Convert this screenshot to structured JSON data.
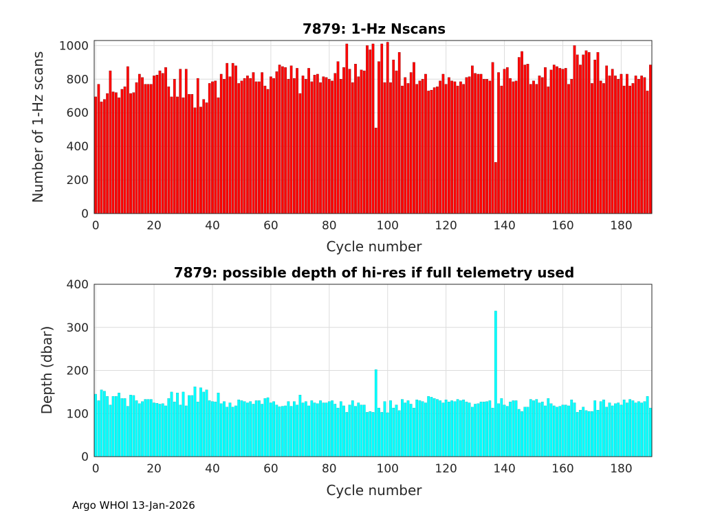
{
  "footer": "Argo WHOI 13-Jan-2026",
  "colors": {
    "top_bars": "#ff0000",
    "bottom_bars": "#00ffff",
    "bar_edge_top": "#660000",
    "bar_edge_bottom": "#00aaaa"
  },
  "chart_data": [
    {
      "type": "bar",
      "title": "7879: 1-Hz Nscans",
      "xlabel": "Cycle number",
      "ylabel": "Number of 1-Hz scans",
      "xlim": [
        -0.5,
        190.5
      ],
      "ylim": [
        0,
        1030
      ],
      "xticks": [
        0,
        20,
        40,
        60,
        80,
        100,
        120,
        140,
        160,
        180
      ],
      "yticks": [
        0,
        200,
        400,
        600,
        800,
        1000
      ],
      "grid": true,
      "x_start": 0,
      "values": [
        695,
        770,
        665,
        680,
        715,
        850,
        725,
        720,
        690,
        740,
        755,
        875,
        715,
        720,
        780,
        830,
        810,
        770,
        770,
        770,
        820,
        825,
        850,
        835,
        870,
        755,
        695,
        800,
        695,
        860,
        690,
        860,
        710,
        710,
        630,
        805,
        635,
        680,
        660,
        775,
        785,
        790,
        690,
        830,
        800,
        895,
        815,
        895,
        880,
        775,
        790,
        805,
        820,
        805,
        840,
        785,
        785,
        840,
        760,
        740,
        815,
        805,
        845,
        885,
        875,
        870,
        800,
        880,
        805,
        865,
        715,
        820,
        800,
        865,
        785,
        825,
        830,
        780,
        815,
        810,
        800,
        790,
        835,
        905,
        800,
        870,
        1010,
        860,
        780,
        890,
        815,
        855,
        850,
        1000,
        975,
        1010,
        510,
        905,
        1010,
        780,
        1020,
        780,
        915,
        850,
        960,
        760,
        810,
        775,
        840,
        900,
        770,
        790,
        800,
        830,
        730,
        735,
        750,
        755,
        790,
        830,
        770,
        810,
        790,
        785,
        760,
        785,
        770,
        810,
        815,
        880,
        835,
        830,
        830,
        800,
        800,
        790,
        900,
        305,
        840,
        760,
        860,
        870,
        805,
        785,
        790,
        930,
        965,
        885,
        890,
        770,
        790,
        770,
        820,
        810,
        870,
        755,
        855,
        885,
        875,
        865,
        860,
        865,
        770,
        800,
        1000,
        945,
        885,
        945,
        970,
        960,
        775,
        915,
        960,
        790,
        775,
        880,
        820,
        860,
        820,
        800,
        830,
        760,
        830,
        760,
        775,
        820,
        800,
        820,
        810,
        730,
        885
      ]
    },
    {
      "type": "bar",
      "title": "7879: possible depth of hi-res if full telemetry used",
      "xlabel": "Cycle number",
      "ylabel": "Depth (dbar)",
      "xlim": [
        -0.5,
        190.5
      ],
      "ylim": [
        0,
        400
      ],
      "xticks": [
        0,
        20,
        40,
        60,
        80,
        100,
        120,
        140,
        160,
        180
      ],
      "yticks": [
        0,
        100,
        200,
        300,
        400
      ],
      "grid": true,
      "x_start": 0,
      "values": [
        145,
        130,
        155,
        152,
        140,
        120,
        140,
        140,
        148,
        135,
        135,
        117,
        143,
        142,
        130,
        123,
        128,
        133,
        133,
        133,
        125,
        124,
        122,
        123,
        118,
        135,
        150,
        127,
        148,
        120,
        150,
        118,
        142,
        142,
        162,
        127,
        160,
        150,
        155,
        130,
        128,
        127,
        148,
        123,
        128,
        115,
        125,
        115,
        118,
        132,
        130,
        128,
        125,
        128,
        122,
        130,
        130,
        122,
        135,
        137,
        125,
        128,
        120,
        116,
        117,
        118,
        128,
        117,
        128,
        120,
        143,
        125,
        128,
        118,
        130,
        125,
        123,
        130,
        125,
        125,
        128,
        130,
        122,
        113,
        128,
        118,
        103,
        120,
        130,
        117,
        125,
        120,
        120,
        103,
        105,
        103,
        202,
        113,
        103,
        128,
        102,
        130,
        113,
        120,
        107,
        133,
        125,
        130,
        122,
        113,
        132,
        130,
        128,
        125,
        140,
        138,
        135,
        133,
        130,
        125,
        132,
        127,
        130,
        128,
        133,
        130,
        132,
        127,
        125,
        115,
        122,
        123,
        127,
        127,
        128,
        130,
        113,
        338,
        123,
        135,
        120,
        117,
        127,
        130,
        130,
        110,
        105,
        115,
        115,
        133,
        130,
        133,
        125,
        127,
        118,
        135,
        123,
        118,
        115,
        117,
        120,
        120,
        118,
        132,
        125,
        103,
        108,
        115,
        107,
        105,
        105,
        130,
        108,
        128,
        132,
        115,
        125,
        118,
        123,
        125,
        120,
        132,
        125,
        133,
        130,
        125,
        128,
        125,
        128,
        140,
        113
      ]
    }
  ]
}
